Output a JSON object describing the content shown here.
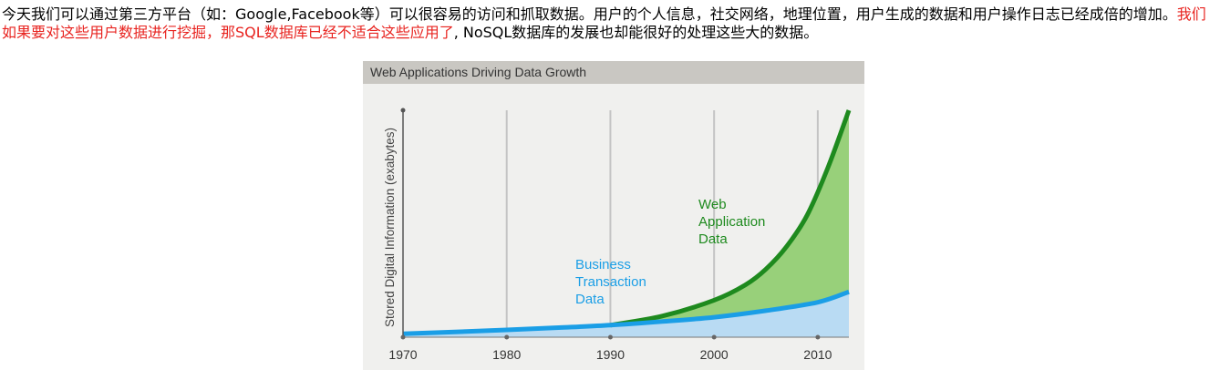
{
  "paragraph": {
    "line1_a": "今天我们可以通过第三方平台（如：",
    "line1_brand": "Google,Facebook",
    "line1_b": "等）可以很容易的访问和抓取数据。用户的个人信息，社交网络，地理位置，用户生成的数据和用户操作日志已经成倍的增加。",
    "red_a": "我们如果要对这些用户数据进行挖掘，那",
    "red_sql": "SQL",
    "red_b": "数据库已经不适合这些应用了",
    "comma": ", ",
    "nosql": "NoSQL",
    "tail": "数据库的发展也却能很好的处理这些大的数据。"
  },
  "figure": {
    "title": "Web Applications Driving Data Growth",
    "colors": {
      "header_bg": "#c9c7c2",
      "plot_bg": "#f0f0ee",
      "business_line": "#1a9ee6",
      "business_fill": "#b9dbf3",
      "web_line": "#1e8a1e",
      "web_fill": "#98d07a",
      "gridline": "#c4c4c4"
    }
  },
  "chart_data": {
    "type": "area",
    "title": "Web Applications Driving Data Growth",
    "xlabel": "",
    "ylabel": "Stored Digital Information (exabytes)",
    "x_ticks": [
      "1970",
      "1980",
      "1990",
      "2000",
      "2010"
    ],
    "xlim": [
      1970,
      2013
    ],
    "ylim": [
      0,
      100
    ],
    "series": [
      {
        "name": "Business Transaction Data",
        "label_lines": [
          "Business",
          "Transaction",
          "Data"
        ],
        "x": [
          1970,
          1975,
          1980,
          1985,
          1990,
          1995,
          2000,
          2005,
          2010,
          2013
        ],
        "values": [
          1.5,
          2.3,
          3.2,
          4.2,
          5.3,
          6.9,
          8.8,
          11.7,
          15.4,
          20.0
        ]
      },
      {
        "name": "Web Application Data",
        "label_lines": [
          "Web",
          "Application",
          "Data"
        ],
        "x": [
          1990,
          1995,
          2000,
          2003,
          2005,
          2007,
          2009,
          2011,
          2013
        ],
        "values": [
          5.3,
          9.3,
          16.3,
          23.0,
          30.0,
          40.0,
          54.0,
          75.0,
          100.0
        ]
      }
    ]
  }
}
